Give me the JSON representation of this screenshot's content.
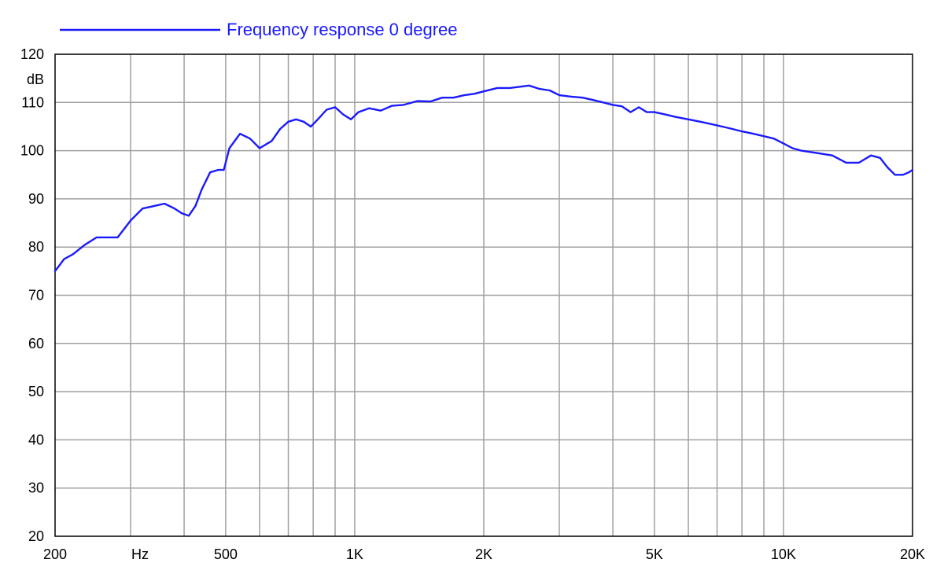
{
  "chart_data": {
    "type": "line",
    "x_scale": "log",
    "xlim": [
      200,
      20000
    ],
    "ylim": [
      20,
      120
    ],
    "grid": true,
    "legend_placement": "top-left",
    "ylabel": "dB",
    "xlabel": "Hz",
    "y_ticks": [
      20,
      30,
      40,
      50,
      60,
      70,
      80,
      90,
      100,
      110,
      120
    ],
    "y_tick_labels": [
      "20",
      "30",
      "40",
      "50",
      "60",
      "70",
      "80",
      "90",
      "100",
      "110",
      "120"
    ],
    "x_gridlines": [
      300,
      400,
      500,
      600,
      700,
      800,
      900,
      1000,
      2000,
      3000,
      4000,
      5000,
      6000,
      7000,
      8000,
      9000,
      10000
    ],
    "x_tick_labels": [
      {
        "x": 200,
        "label": "200"
      },
      {
        "x": 500,
        "label": "500"
      },
      {
        "x": 1000,
        "label": "1K"
      },
      {
        "x": 2000,
        "label": "2K"
      },
      {
        "x": 5000,
        "label": "5K"
      },
      {
        "x": 10000,
        "label": "10K"
      },
      {
        "x": 20000,
        "label": "20K"
      }
    ],
    "colors": {
      "series": "#1a1aff",
      "grid": "#a0a0a0",
      "frame": "#000000"
    },
    "series": [
      {
        "name": "Frequency response 0 degree",
        "x": [
          200,
          210,
          220,
          235,
          250,
          265,
          280,
          300,
          320,
          340,
          360,
          380,
          395,
          410,
          425,
          440,
          460,
          480,
          495,
          510,
          540,
          570,
          600,
          640,
          670,
          700,
          730,
          760,
          790,
          820,
          860,
          900,
          940,
          980,
          1020,
          1080,
          1150,
          1220,
          1300,
          1400,
          1500,
          1600,
          1700,
          1800,
          1900,
          2000,
          2150,
          2300,
          2450,
          2550,
          2700,
          2850,
          3000,
          3200,
          3400,
          3600,
          3800,
          4000,
          4200,
          4400,
          4600,
          4800,
          5000,
          5300,
          5600,
          6000,
          6400,
          6800,
          7200,
          7600,
          8000,
          8500,
          9000,
          9500,
          10000,
          10500,
          11000,
          12000,
          13000,
          14000,
          15000,
          16000,
          16800,
          17500,
          18200,
          19000,
          19600,
          20000
        ],
        "y": [
          75,
          77.5,
          78.5,
          80.5,
          82,
          82,
          82,
          85.5,
          88,
          88.5,
          89,
          88,
          87,
          86.5,
          88.5,
          92,
          95.5,
          96,
          96,
          100.5,
          103.5,
          102.5,
          100.5,
          102,
          104.5,
          106,
          106.5,
          106,
          105,
          106.5,
          108.5,
          109,
          107.5,
          106.5,
          108,
          108.8,
          108.3,
          109.3,
          109.5,
          110.3,
          110.2,
          111,
          111,
          111.5,
          111.8,
          112.3,
          113,
          113,
          113.3,
          113.5,
          112.8,
          112.5,
          111.5,
          111.2,
          111,
          110.5,
          110,
          109.5,
          109.2,
          108,
          109,
          108,
          108,
          107.5,
          107,
          106.5,
          106,
          105.5,
          105,
          104.5,
          104,
          103.5,
          103,
          102.5,
          101.5,
          100.5,
          100,
          99.5,
          99,
          97.5,
          97.5,
          99,
          98.5,
          96.5,
          95,
          95,
          95.5,
          96
        ]
      }
    ]
  }
}
